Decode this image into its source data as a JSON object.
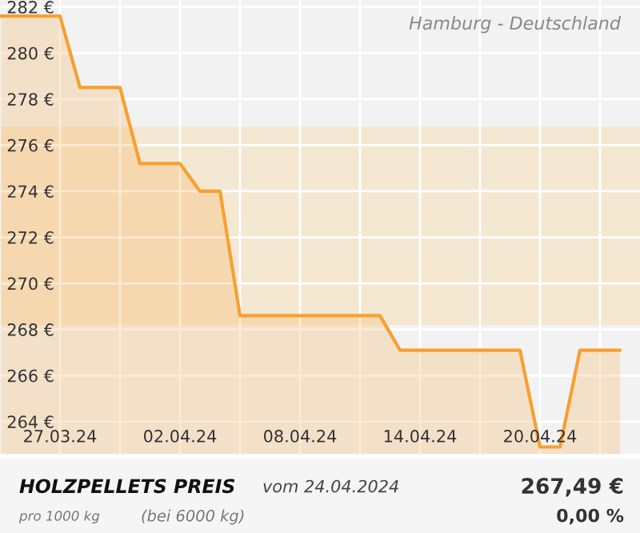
{
  "chart_data": {
    "type": "area",
    "title": "Hamburg - Deutschland",
    "x": [
      "2024-03-24",
      "2024-03-27",
      "2024-03-28",
      "2024-03-30",
      "2024-03-31",
      "2024-04-02",
      "2024-04-03",
      "2024-04-04",
      "2024-04-05",
      "2024-04-12",
      "2024-04-13",
      "2024-04-19",
      "2024-04-20",
      "2024-04-21",
      "2024-04-22",
      "2024-04-24"
    ],
    "series": [
      {
        "color": "#f5a032",
        "values": [
          281.6,
          281.6,
          278.5,
          278.5,
          275.2,
          275.2,
          274.0,
          274.0,
          268.6,
          268.6,
          267.1,
          267.1,
          262.9,
          262.9,
          267.1,
          267.1
        ]
      }
    ],
    "xlim": [
      "2024-03-24",
      "2024-04-25"
    ],
    "ylim": [
      262.5,
      282.3
    ],
    "xticks": [
      {
        "value": "2024-03-27",
        "label": "27.03.24"
      },
      {
        "value": "2024-03-30",
        "label": null
      },
      {
        "value": "2024-04-02",
        "label": "02.04.24"
      },
      {
        "value": "2024-04-05",
        "label": null
      },
      {
        "value": "2024-04-08",
        "label": "08.04.24"
      },
      {
        "value": "2024-04-11",
        "label": null
      },
      {
        "value": "2024-04-14",
        "label": "14.04.24"
      },
      {
        "value": "2024-04-17",
        "label": null
      },
      {
        "value": "2024-04-20",
        "label": "20.04.24"
      },
      {
        "value": "2024-04-23",
        "label": null
      }
    ],
    "yticks": [
      {
        "value": 264,
        "label": "264 €"
      },
      {
        "value": 266,
        "label": "266 €"
      },
      {
        "value": 268,
        "label": "268 €"
      },
      {
        "value": 270,
        "label": "270 €"
      },
      {
        "value": 272,
        "label": "272 €"
      },
      {
        "value": 274,
        "label": "274 €"
      },
      {
        "value": 276,
        "label": "276 €"
      },
      {
        "value": 278,
        "label": "278 €"
      },
      {
        "value": 280,
        "label": "280 €"
      },
      {
        "value": 282,
        "label": "282 €"
      }
    ],
    "grid": true,
    "bands": [
      {
        "axis": "y",
        "from": 268.2,
        "to": 276.8,
        "color": "#f5e8d2"
      }
    ],
    "annotations": [
      "HOLZPELLETS PREIS",
      "vom 24.04.2024",
      "pro 1000 kg",
      "(bei 6000 kg)",
      "267,49 €",
      "0,00 %"
    ]
  }
}
